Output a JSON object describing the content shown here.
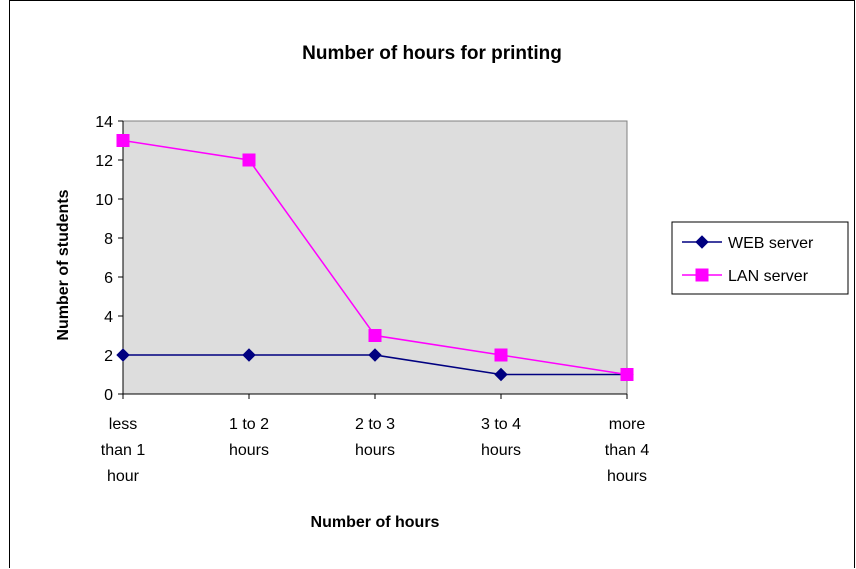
{
  "chart_data": {
    "type": "line",
    "title": "Number of hours for printing",
    "xlabel": "Number of hours",
    "ylabel": "Number of students",
    "categories": [
      [
        "less",
        "than 1",
        "hour"
      ],
      [
        "1 to 2",
        "hours"
      ],
      [
        "2 to 3",
        "hours"
      ],
      [
        "3 to 4",
        "hours"
      ],
      [
        "more",
        "than 4",
        "hours"
      ]
    ],
    "ylim": [
      0,
      14
    ],
    "yticks": [
      "0",
      "2",
      "4",
      "6",
      "8",
      "10",
      "12",
      "14"
    ],
    "series": [
      {
        "name": "WEB server",
        "values": [
          2,
          2,
          2,
          1,
          1
        ],
        "color": "#000080",
        "marker": "diamond"
      },
      {
        "name": "LAN server",
        "values": [
          13,
          12,
          3,
          2,
          1
        ],
        "color": "#FF00FF",
        "marker": "square"
      }
    ],
    "plot_background": "#DDDDDD",
    "legend_placement": "right"
  }
}
